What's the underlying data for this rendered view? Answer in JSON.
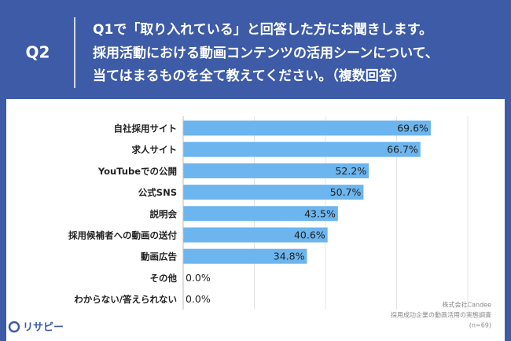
{
  "chart_data": {
    "type": "bar",
    "orientation": "horizontal",
    "question_number": "Q2",
    "title_lines": [
      "Q1で「取り入れている」と回答した方にお聞きします。",
      "採用活動における動画コンテンツの活用シーンについて、",
      "当てはまるものを全て教えてください。（複数回答）"
    ],
    "categories": [
      "自社採用サイト",
      "求人サイト",
      "YouTubeでの公開",
      "公式SNS",
      "説明会",
      "採用候補者への動画の送付",
      "動画広告",
      "その他",
      "わからない/答えられない"
    ],
    "values": [
      69.6,
      66.7,
      52.2,
      50.7,
      43.5,
      40.6,
      34.8,
      0.0,
      0.0
    ],
    "value_labels": [
      "69.6%",
      "66.7%",
      "52.2%",
      "50.7%",
      "43.5%",
      "40.6%",
      "34.8%",
      "0.0%",
      "0.0%"
    ],
    "color": "#6cb5ee",
    "xlim": [
      0,
      80
    ],
    "source": [
      "株式会社Candee",
      "採用成功企業の動画活用の実態調査",
      "(n=69)"
    ],
    "logo": "リサピー"
  }
}
